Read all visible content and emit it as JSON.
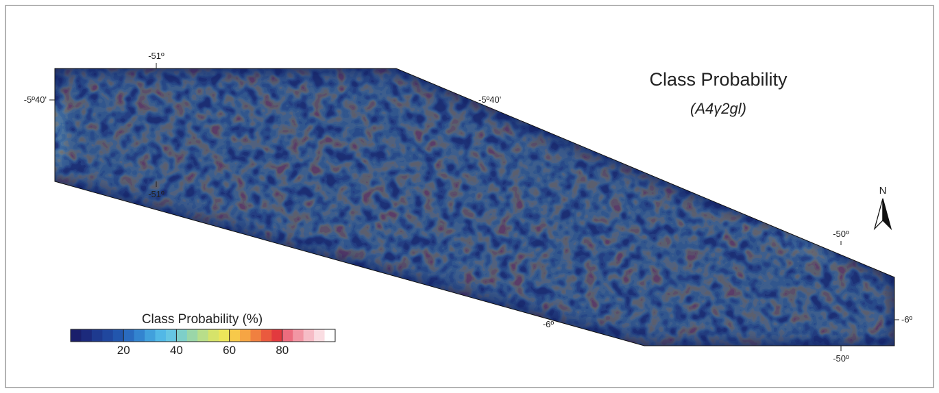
{
  "map": {
    "title": "Class Probability",
    "subtitle": "(A4γ2gl)",
    "north": "N",
    "coordinate_labels": [
      "-51º",
      "-5º40'",
      "-5º40'",
      "-51º",
      "-50º",
      "-6º",
      "-6º",
      "-50º"
    ],
    "legend": {
      "title": "Class Probability (%)",
      "range": [
        0,
        100
      ],
      "ticks": [
        20,
        40,
        60,
        80
      ],
      "colors": [
        "#1a1f6b",
        "#1c2a7c",
        "#1e3a8f",
        "#20479e",
        "#2256ad",
        "#2a6bbf",
        "#3384cf",
        "#41a0dc",
        "#52b8e6",
        "#66c6e3",
        "#7ecfc9",
        "#9ad6a8",
        "#b8de8a",
        "#d6e36a",
        "#ece65a",
        "#f7c94a",
        "#f6a544",
        "#f08040",
        "#ea5a3e",
        "#e23a3e",
        "#ec6c7e",
        "#f296a4",
        "#f6bcc6",
        "#fadde2",
        "#ffffff"
      ]
    }
  }
}
